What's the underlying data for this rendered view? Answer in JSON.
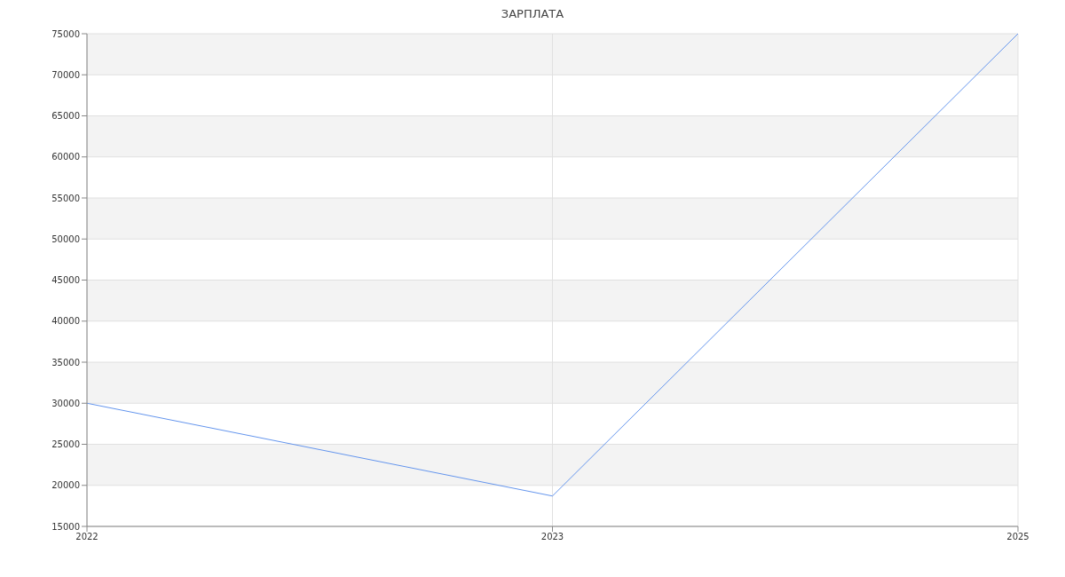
{
  "chart_data": {
    "type": "line",
    "title": "ЗАРПЛАТА",
    "categories": [
      "2022",
      "2023",
      "2025"
    ],
    "series": [
      {
        "color": "#6495ed",
        "values": [
          30000,
          18700,
          75000
        ]
      }
    ],
    "ylim": [
      15000,
      75000
    ],
    "yticks": [
      15000,
      20000,
      25000,
      30000,
      35000,
      40000,
      45000,
      50000,
      55000,
      60000,
      65000,
      70000,
      75000
    ],
    "grid": true,
    "marker": "none",
    "line_style": "solid",
    "legend": false
  }
}
